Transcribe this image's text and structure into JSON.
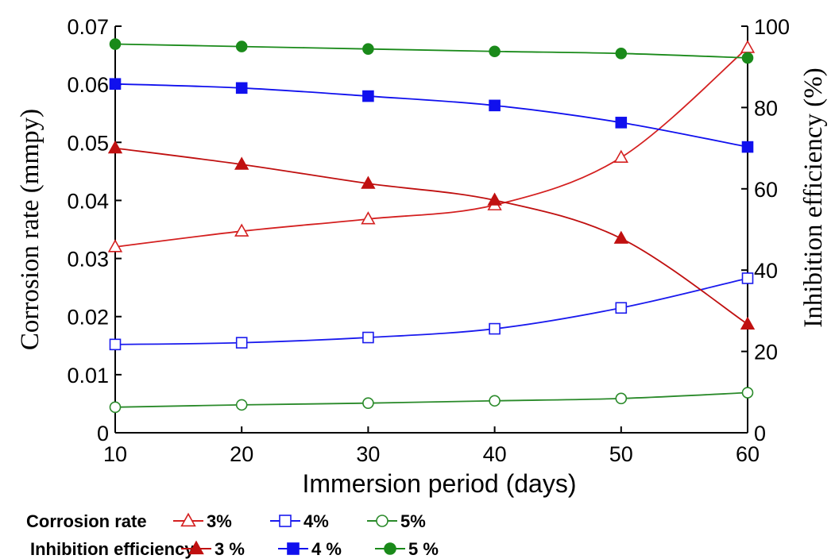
{
  "chart_data": {
    "type": "line",
    "xlabel": "Immersion period (days)",
    "ylabel": "Corrosion rate (mmpy)",
    "y2label": "Inhibition efficiency (%)",
    "x": [
      10,
      20,
      30,
      40,
      50,
      60
    ],
    "xlim": [
      10,
      60
    ],
    "ylim": [
      0,
      0.07
    ],
    "y2lim": [
      0,
      100
    ],
    "x_ticks": [
      "10",
      "20",
      "30",
      "40",
      "50",
      "60"
    ],
    "y_ticks": [
      "0",
      "0.01",
      "0.02",
      "0.03",
      "0.04",
      "0.05",
      "0.06",
      "0.07"
    ],
    "y2_ticks": [
      "0",
      "20",
      "40",
      "60",
      "80",
      "100"
    ],
    "grid": false,
    "legend_placement": "bottom",
    "series": [
      {
        "group": "Corrosion rate",
        "name": "3%",
        "axis": "left",
        "marker": "triangle-open",
        "color": "#d42020",
        "values": [
          0.032,
          0.0347,
          0.0368,
          0.0392,
          0.0474,
          0.0663
        ]
      },
      {
        "group": "Corrosion rate",
        "name": "4%",
        "axis": "left",
        "marker": "square-open",
        "color": "#1a1aee",
        "values": [
          0.0152,
          0.0155,
          0.0164,
          0.0179,
          0.0215,
          0.0266
        ]
      },
      {
        "group": "Corrosion rate",
        "name": "5%",
        "axis": "left",
        "marker": "circle-open",
        "color": "#2a8a2a",
        "values": [
          0.0044,
          0.0048,
          0.0051,
          0.0055,
          0.0059,
          0.0069
        ]
      },
      {
        "group": "Inhibition efficiency",
        "name": "3 %",
        "axis": "right",
        "marker": "triangle-filled",
        "color": "#c01010",
        "values": [
          70,
          66,
          61.3,
          57.2,
          47.8,
          26.7
        ]
      },
      {
        "group": "Inhibition efficiency",
        "name": "4 %",
        "axis": "right",
        "marker": "square-filled",
        "color": "#1010ee",
        "values": [
          85.8,
          84.8,
          82.8,
          80.5,
          76.3,
          70.3
        ]
      },
      {
        "group": "Inhibition efficiency",
        "name": "5 %",
        "axis": "right",
        "marker": "circle-filled",
        "color": "#1a8a1a",
        "values": [
          95.6,
          95,
          94.4,
          93.8,
          93.3,
          92.2
        ]
      }
    ],
    "legend": {
      "corrosion_title": "Corrosion rate",
      "inhibition_title": "Inhibition efficiency"
    }
  }
}
